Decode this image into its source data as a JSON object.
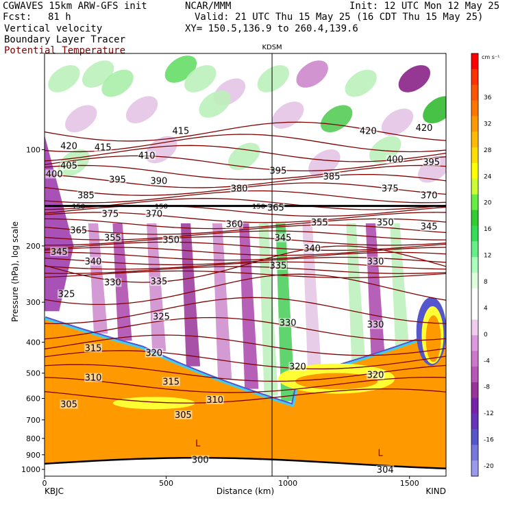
{
  "header": {
    "model_line": "CGWAVES 15km ARW-GFS init",
    "fcst_label": "Fcst:",
    "fcst_value": "81 h",
    "center": "NCAR/MMM",
    "init": "Init: 12 UTC Mon 12 May 25",
    "valid": "Valid: 21 UTC Thu 15 May 25 (16 CDT Thu 15 May 25)",
    "xy": "XY= 150.5,136.9 to 260.4,139.6",
    "legend_fields": [
      "Vertical velocity",
      "Boundary Layer Tracer",
      "Potential Temperature"
    ]
  },
  "colors": {
    "theta_contour": "#800000",
    "tracer_line": "#000000",
    "station_line": "#000000"
  },
  "chart_data": {
    "type": "heatmap",
    "title": "",
    "xlabel": "Distance (km)",
    "ylabel": "Pressure (hPa), log scale",
    "xlim": [
      0,
      1650
    ],
    "ylim": [
      1050,
      50
    ],
    "y_scale": "log",
    "x_ticks": [
      0,
      500,
      1000,
      1500
    ],
    "y_ticks": [
      100,
      200,
      300,
      400,
      500,
      600,
      700,
      800,
      900,
      1000
    ],
    "endpoint_labels": {
      "left": "KBJC",
      "right": "KIND"
    },
    "marker_station": {
      "label": "KDSM",
      "x": 935
    },
    "tracer_level_hPa": 150,
    "colorbar": {
      "unit": "cm s⁻¹",
      "tick_labels": [
        "36",
        "32",
        "28",
        "24",
        "20",
        "16",
        "12",
        "8",
        "4",
        "0",
        "-4",
        "-8",
        "-12",
        "-16",
        "-20"
      ],
      "colors": [
        "#ff0000",
        "#ff3300",
        "#ff5500",
        "#ff7700",
        "#ff9900",
        "#ffbb00",
        "#ffdd00",
        "#ffff00",
        "#ccff33",
        "#66ee44",
        "#33cc33",
        "#33dd55",
        "#66ee88",
        "#aaffbb",
        "#ddffdd",
        "#ffffff",
        "#ffffff",
        "#eeccee",
        "#dd99dd",
        "#cc77cc",
        "#b855b8",
        "#993399",
        "#7722aa",
        "#6633bb",
        "#5555cc",
        "#7777dd",
        "#9999ee"
      ]
    },
    "theta_labels": [
      {
        "value": "420",
        "x": 100,
        "p": 98
      },
      {
        "value": "415",
        "x": 240,
        "p": 99
      },
      {
        "value": "410",
        "x": 420,
        "p": 105
      },
      {
        "value": "415",
        "x": 560,
        "p": 88
      },
      {
        "value": "420",
        "x": 1330,
        "p": 88
      },
      {
        "value": "420",
        "x": 1560,
        "p": 86
      },
      {
        "value": "400",
        "x": 1440,
        "p": 108
      },
      {
        "value": "395",
        "x": 1590,
        "p": 110
      },
      {
        "value": "405",
        "x": 100,
        "p": 113
      },
      {
        "value": "400",
        "x": 40,
        "p": 120
      },
      {
        "value": "395",
        "x": 300,
        "p": 125
      },
      {
        "value": "390",
        "x": 470,
        "p": 126
      },
      {
        "value": "395",
        "x": 960,
        "p": 117
      },
      {
        "value": "385",
        "x": 1180,
        "p": 122
      },
      {
        "value": "380",
        "x": 800,
        "p": 133
      },
      {
        "value": "385",
        "x": 170,
        "p": 140
      },
      {
        "value": "375",
        "x": 1420,
        "p": 133
      },
      {
        "value": "370",
        "x": 1580,
        "p": 140
      },
      {
        "value": "375",
        "x": 270,
        "p": 160
      },
      {
        "value": "370",
        "x": 450,
        "p": 160
      },
      {
        "value": "365",
        "x": 950,
        "p": 153
      },
      {
        "value": "355",
        "x": 1130,
        "p": 170
      },
      {
        "value": "350",
        "x": 1400,
        "p": 170
      },
      {
        "value": "345",
        "x": 1580,
        "p": 175
      },
      {
        "value": "360",
        "x": 780,
        "p": 172
      },
      {
        "value": "365",
        "x": 140,
        "p": 180
      },
      {
        "value": "355",
        "x": 280,
        "p": 190
      },
      {
        "value": "350",
        "x": 520,
        "p": 193
      },
      {
        "value": "345",
        "x": 980,
        "p": 190
      },
      {
        "value": "340",
        "x": 1100,
        "p": 205
      },
      {
        "value": "345",
        "x": 60,
        "p": 210
      },
      {
        "value": "340",
        "x": 200,
        "p": 225
      },
      {
        "value": "335",
        "x": 960,
        "p": 232
      },
      {
        "value": "330",
        "x": 1360,
        "p": 225
      },
      {
        "value": "330",
        "x": 280,
        "p": 262
      },
      {
        "value": "335",
        "x": 470,
        "p": 260
      },
      {
        "value": "325",
        "x": 90,
        "p": 285
      },
      {
        "value": "325",
        "x": 480,
        "p": 335
      },
      {
        "value": "330",
        "x": 1000,
        "p": 350
      },
      {
        "value": "330",
        "x": 1360,
        "p": 355
      },
      {
        "value": "315",
        "x": 200,
        "p": 420
      },
      {
        "value": "320",
        "x": 450,
        "p": 435
      },
      {
        "value": "320",
        "x": 1040,
        "p": 480
      },
      {
        "value": "320",
        "x": 1360,
        "p": 510
      },
      {
        "value": "310",
        "x": 200,
        "p": 520
      },
      {
        "value": "315",
        "x": 520,
        "p": 535
      },
      {
        "value": "310",
        "x": 700,
        "p": 610
      },
      {
        "value": "305",
        "x": 100,
        "p": 630
      },
      {
        "value": "305",
        "x": 570,
        "p": 680
      },
      {
        "value": "300",
        "x": 640,
        "p": 940
      },
      {
        "value": "304",
        "x": 1400,
        "p": 1010
      }
    ],
    "low_markers": [
      {
        "label": "L",
        "x": 630,
        "p": 830
      },
      {
        "label": "L",
        "x": 1380,
        "p": 890
      }
    ],
    "tracer_labels": [
      {
        "value": "150",
        "x": 140,
        "p": 150
      },
      {
        "value": "150",
        "x": 480,
        "p": 150
      },
      {
        "value": "150",
        "x": 880,
        "p": 150
      }
    ]
  }
}
